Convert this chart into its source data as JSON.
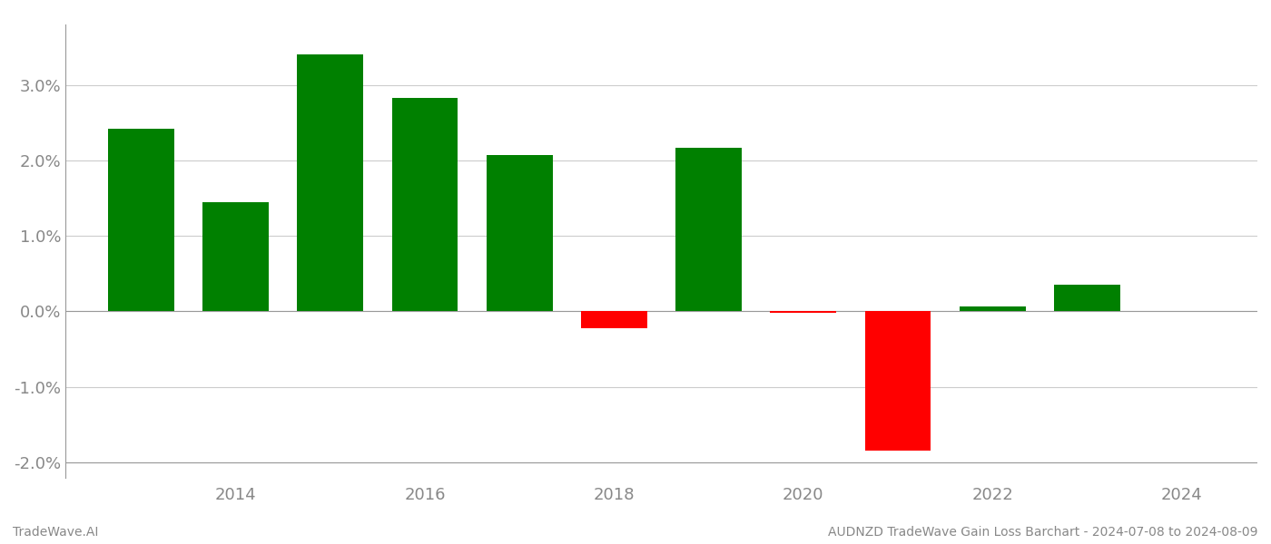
{
  "years": [
    2013,
    2014,
    2015,
    2016,
    2017,
    2018,
    2019,
    2020,
    2021,
    2022,
    2023
  ],
  "values": [
    0.0242,
    0.0145,
    0.034,
    0.0283,
    0.0207,
    -0.0022,
    0.0217,
    -0.00025,
    -0.0185,
    0.0006,
    0.0035
  ],
  "color_positive": "#008000",
  "color_negative": "#FF0000",
  "ylim": [
    -0.022,
    0.038
  ],
  "yticks": [
    -0.02,
    -0.01,
    0.0,
    0.01,
    0.02,
    0.03
  ],
  "xtick_values": [
    2014,
    2016,
    2018,
    2020,
    2022,
    2024
  ],
  "footer_left": "TradeWave.AI",
  "footer_right": "AUDNZD TradeWave Gain Loss Barchart - 2024-07-08 to 2024-08-09",
  "bar_width": 0.7,
  "background_color": "#ffffff",
  "grid_color": "#cccccc",
  "axis_label_color": "#888888",
  "footer_color": "#888888",
  "footer_fontsize": 10,
  "tick_fontsize": 13,
  "xlim_left": 2012.2,
  "xlim_right": 2024.8
}
